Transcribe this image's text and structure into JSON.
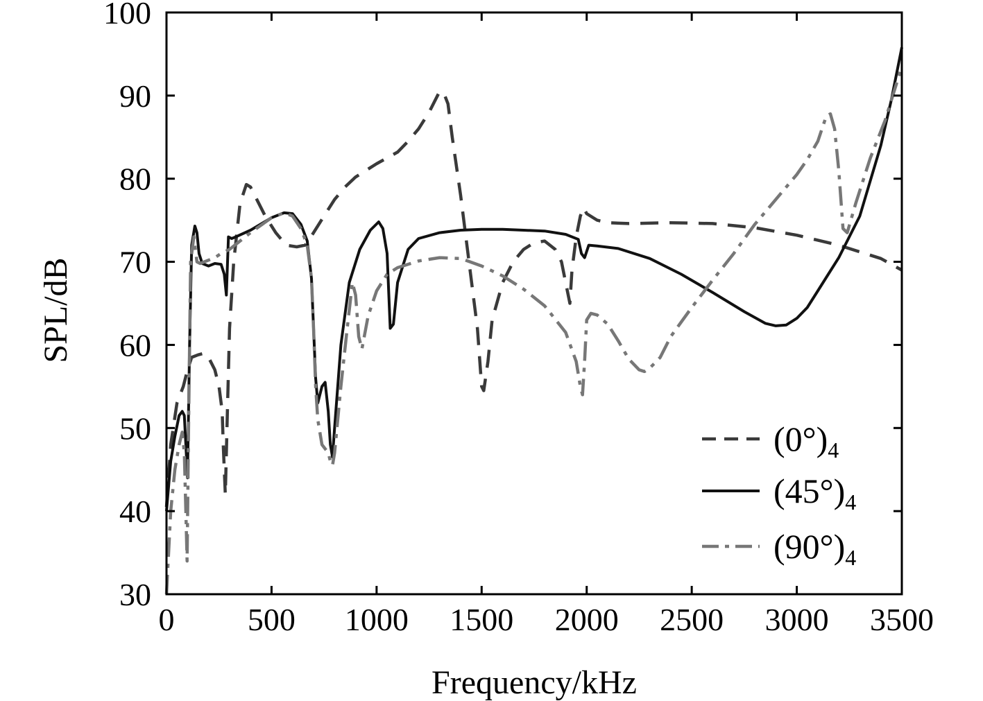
{
  "chart_data": {
    "type": "line",
    "xlabel": "Frequency/kHz",
    "ylabel": "SPL/dB",
    "xlim": [
      0,
      3500
    ],
    "ylim": [
      30,
      100
    ],
    "xticks": [
      0,
      500,
      1000,
      1500,
      2000,
      2500,
      3000,
      3500
    ],
    "yticks": [
      30,
      40,
      50,
      60,
      70,
      80,
      90,
      100
    ],
    "grid": false,
    "legend_position": "bottom-right",
    "series": [
      {
        "name": "(0°)",
        "subscript": "4",
        "color": "#3a3a3a",
        "style": "dashed",
        "x": [
          0,
          20,
          50,
          80,
          100,
          120,
          150,
          180,
          200,
          230,
          250,
          265,
          270,
          280,
          290,
          300,
          320,
          350,
          380,
          400,
          430,
          470,
          520,
          570,
          620,
          660,
          700,
          750,
          800,
          850,
          900,
          950,
          1000,
          1050,
          1100,
          1150,
          1200,
          1250,
          1300,
          1320,
          1340,
          1360,
          1400,
          1450,
          1480,
          1500,
          1510,
          1530,
          1550,
          1600,
          1650,
          1700,
          1750,
          1800,
          1850,
          1880,
          1900,
          1920,
          1930,
          1950,
          1970,
          1985,
          2000,
          2050,
          2100,
          2200,
          2400,
          2600,
          2800,
          3000,
          3200,
          3400,
          3500
        ],
        "y": [
          40.5,
          48,
          53,
          55,
          57,
          58.5,
          58.8,
          59,
          58.5,
          57,
          55,
          52,
          48,
          42,
          52,
          62,
          70,
          77,
          79.3,
          79,
          77.5,
          75.5,
          73.5,
          72,
          71.8,
          72,
          73.5,
          75.5,
          77.5,
          79,
          80.2,
          81,
          81.8,
          82.5,
          83.2,
          84.5,
          86,
          88,
          90.5,
          90.3,
          89,
          85,
          78,
          68,
          62,
          55,
          54.5,
          58,
          63,
          67.5,
          70,
          71.5,
          72.3,
          72.5,
          71.5,
          70,
          67.5,
          65,
          69,
          73,
          75.5,
          76.5,
          75.8,
          75,
          74.7,
          74.6,
          74.7,
          74.6,
          74.1,
          73.2,
          72,
          70.4,
          69
        ]
      },
      {
        "name": "(45°)",
        "subscript": "4",
        "color": "#111111",
        "style": "solid",
        "x": [
          0,
          20,
          40,
          60,
          75,
          85,
          92,
          100,
          110,
          120,
          135,
          145,
          155,
          170,
          200,
          230,
          260,
          275,
          285,
          295,
          310,
          330,
          400,
          500,
          560,
          600,
          640,
          670,
          690,
          700,
          710,
          720,
          740,
          755,
          770,
          780,
          790,
          800,
          830,
          870,
          920,
          970,
          1010,
          1030,
          1050,
          1065,
          1080,
          1100,
          1150,
          1200,
          1300,
          1400,
          1500,
          1600,
          1700,
          1800,
          1900,
          1960,
          1975,
          1990,
          2010,
          2050,
          2150,
          2300,
          2450,
          2600,
          2750,
          2850,
          2900,
          2950,
          3000,
          3050,
          3100,
          3150,
          3200,
          3300,
          3400,
          3450,
          3500
        ],
        "y": [
          40,
          46,
          49,
          51.5,
          52,
          51.5,
          48,
          44,
          60,
          72,
          74.3,
          73.5,
          71,
          69.8,
          69.5,
          69.8,
          69.7,
          68.5,
          66,
          73,
          72.8,
          73,
          73.8,
          75.3,
          75.9,
          75.8,
          74.5,
          72.5,
          68,
          62,
          56,
          53,
          55,
          55.5,
          52,
          48,
          46.5,
          50,
          60,
          67.5,
          71.5,
          73.8,
          74.8,
          74,
          71,
          62,
          62.5,
          67.5,
          71.5,
          72.8,
          73.5,
          73.8,
          73.9,
          73.9,
          73.8,
          73.7,
          73.3,
          72.7,
          71,
          70.5,
          72,
          71.9,
          71.6,
          70.4,
          68.5,
          66.3,
          64,
          62.6,
          62.3,
          62.4,
          63.2,
          64.5,
          66.5,
          68.5,
          70.5,
          75.5,
          84,
          89.5,
          95.8
        ]
      },
      {
        "name": "(90°)",
        "subscript": "4",
        "color": "#777777",
        "style": "dash-dot",
        "x": [
          0,
          20,
          40,
          60,
          75,
          85,
          92,
          98,
          105,
          115,
          130,
          145,
          160,
          180,
          200,
          230,
          260,
          300,
          350,
          400,
          500,
          560,
          600,
          640,
          670,
          690,
          700,
          710,
          720,
          740,
          755,
          770,
          780,
          790,
          800,
          830,
          860,
          885,
          900,
          915,
          930,
          960,
          1000,
          1050,
          1100,
          1200,
          1300,
          1400,
          1500,
          1600,
          1700,
          1800,
          1900,
          1950,
          1970,
          1980,
          1990,
          2000,
          2020,
          2050,
          2100,
          2150,
          2200,
          2250,
          2275,
          2300,
          2350,
          2400,
          2500,
          2600,
          2700,
          2800,
          2900,
          3000,
          3050,
          3100,
          3120,
          3140,
          3160,
          3180,
          3200,
          3220,
          3240,
          3280,
          3350,
          3420,
          3500
        ],
        "y": [
          30,
          40,
          45,
          48,
          49.5,
          47,
          40,
          34,
          50,
          70,
          73,
          70,
          69.8,
          70,
          70.2,
          70.5,
          71,
          71.5,
          72.5,
          73.5,
          75.3,
          75.9,
          75.5,
          74,
          72,
          68,
          62,
          55,
          51,
          48,
          47.5,
          47,
          46,
          45.5,
          47,
          55,
          62,
          67.5,
          66,
          61,
          59.5,
          63.5,
          66.5,
          68.5,
          69.3,
          70.1,
          70.5,
          70.4,
          69.5,
          68.3,
          66.7,
          64.7,
          61.5,
          58,
          55,
          54,
          58,
          63,
          63.8,
          63.6,
          62.5,
          60.5,
          58.3,
          57,
          56.8,
          57.2,
          58.5,
          61,
          64.5,
          67.8,
          71,
          74.5,
          77.5,
          80.5,
          82.3,
          84.5,
          86,
          87.5,
          87.8,
          86,
          81,
          74,
          73.5,
          77,
          82.5,
          87,
          93.5
        ]
      }
    ]
  }
}
